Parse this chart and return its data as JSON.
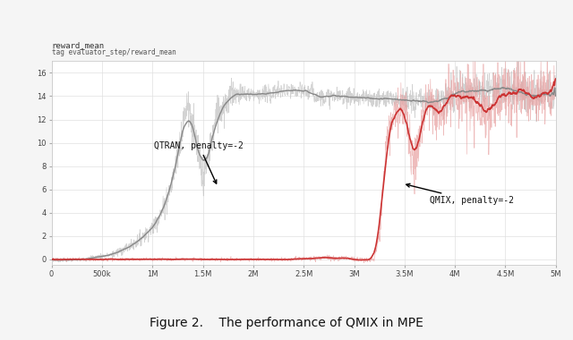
{
  "title": "Figure 2.    The performance of QMIX in MPE",
  "ylabel_top": "reward_mean",
  "ylabel_tag": "tag evaluator_step/reward_mean",
  "xlim": [
    0,
    5000000
  ],
  "ylim": [
    -0.5,
    17
  ],
  "yticks": [
    0,
    2,
    4,
    6,
    8,
    10,
    12,
    14,
    16
  ],
  "xtick_labels": [
    "0",
    "500k",
    "1M",
    "1.5M",
    "2M",
    "2.5M",
    "3M",
    "3.5M",
    "4M",
    "4.5M",
    "5M"
  ],
  "xtick_values": [
    0,
    500000,
    1000000,
    1500000,
    2000000,
    2500000,
    3000000,
    3500000,
    4000000,
    4500000,
    5000000
  ],
  "background_color": "#f5f5f5",
  "plot_bg_color": "#ffffff",
  "grid_color": "#e0e0e0",
  "qtran_raw_color": "#c0c0c0",
  "qtran_smooth_color": "#888888",
  "qmix_raw_color": "#e8a0a0",
  "qmix_smooth_color": "#cc3333",
  "qtran_label": "QTRAN, penalty=-2",
  "qmix_label": "QMIX, penalty=-2",
  "title_fontsize": 10,
  "tick_fontsize": 6,
  "annotation_fontsize": 7
}
